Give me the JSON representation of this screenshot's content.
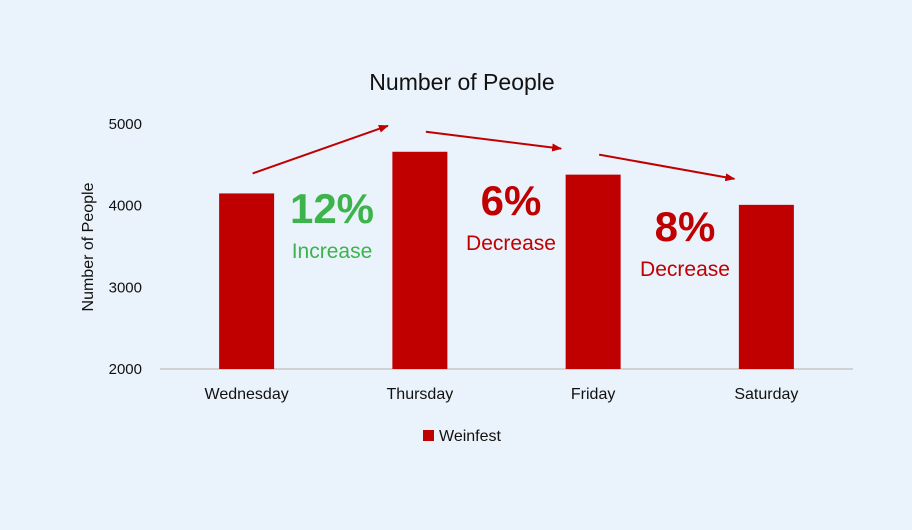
{
  "chart_data": {
    "type": "bar",
    "title": "Number of People",
    "ylabel": "Number of People",
    "xlabel": "",
    "categories": [
      "Wednesday",
      "Thursday",
      "Friday",
      "Saturday"
    ],
    "series": [
      {
        "name": "Weinfest",
        "values": [
          4150,
          4660,
          4380,
          4010
        ]
      }
    ],
    "ylim": [
      2000,
      5000
    ],
    "yticks": [
      2000,
      3000,
      4000,
      5000
    ],
    "grid": false,
    "legend": "bottom",
    "bar_color": "#c00000",
    "annotations": [
      {
        "percent": "12%",
        "label": "Increase",
        "color": "#3cb44b"
      },
      {
        "percent": "6%",
        "label": "Decrease",
        "color": "#c00000"
      },
      {
        "percent": "8%",
        "label": "Decrease",
        "color": "#c00000"
      }
    ]
  }
}
